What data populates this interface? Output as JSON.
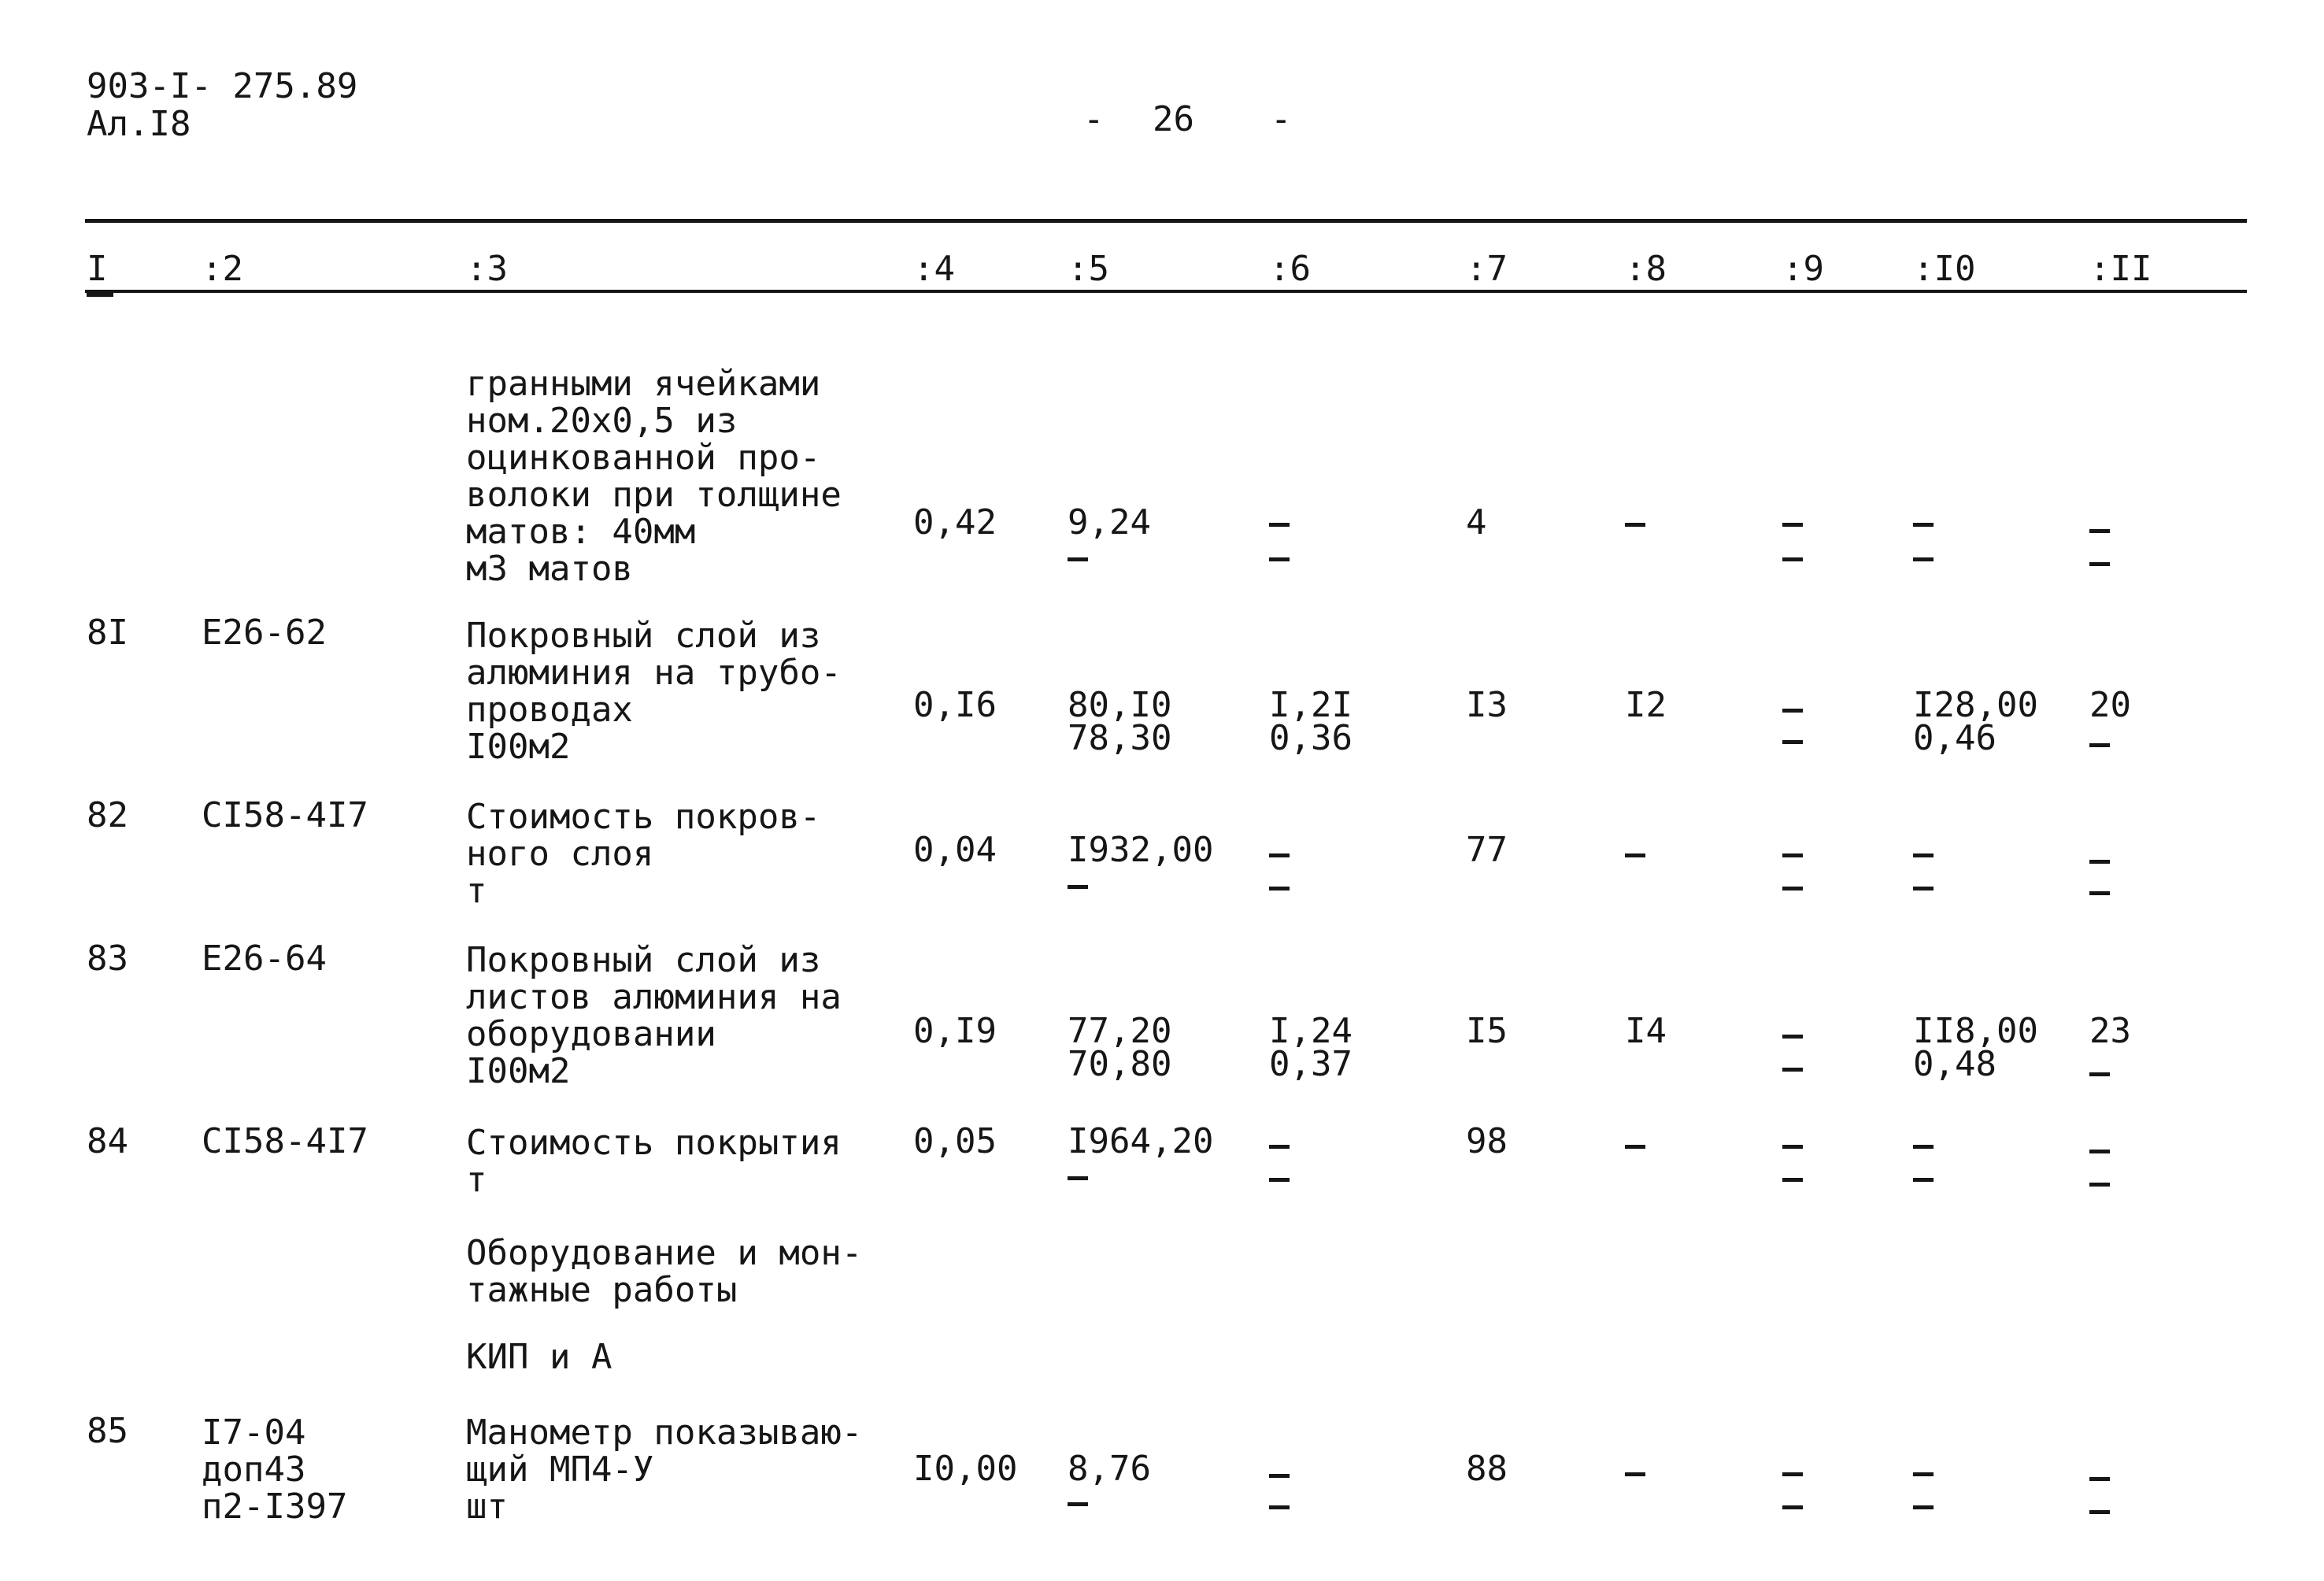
{
  "header": {
    "doc_code": "903-I- 275.89",
    "album": "Ал.I8",
    "page_number": "26",
    "page_dash_left": "-",
    "page_dash_right": "-"
  },
  "columns": [
    "I",
    ":2",
    ":3",
    ":4",
    ":5",
    ":6",
    ":7",
    ":8",
    ":9",
    ":I0",
    ":II"
  ],
  "rows": [
    {
      "num": "",
      "code": "",
      "name": "гранными ячейками\nном.20х0,5 из\nоцинкованной про-\nволоки при толщине\nматов: 40мм\nм3 матов",
      "col4": "0,42",
      "col5": "9,24",
      "col5b": "-",
      "col6": "-",
      "col6b": "-",
      "col7": "4",
      "col8": "-",
      "col9": "-",
      "col9b": "-",
      "col10": "-",
      "col10b": "-",
      "col11": "-",
      "col11b": "-"
    },
    {
      "num": "8I",
      "code": "Е26-62",
      "name": "Покровный слой из\nалюминия на трубо-\nпроводах\nI00м2",
      "col4": "0,I6",
      "col5": "80,I0",
      "col5b": "78,30",
      "col6": "I,2I",
      "col6b": "0,36",
      "col7": "I3",
      "col8": "I2",
      "col9": "-",
      "col9b": "-",
      "col10": "I28,00",
      "col10b": "0,46",
      "col11": "20",
      "col11b": "-"
    },
    {
      "num": "82",
      "code": "СI58-4I7",
      "name": "Стоимость покров-\nного слоя\nт",
      "col4": "0,04",
      "col5": "I932,00",
      "col5b": "-",
      "col6": "-",
      "col6b": "-",
      "col7": "77",
      "col8": "-",
      "col9": "-",
      "col9b": "-",
      "col10": "-",
      "col10b": "-",
      "col11": "-",
      "col11b": "-"
    },
    {
      "num": "83",
      "code": "Е26-64",
      "name": "Покровный слой из\nлистов алюминия на\nоборудовании\nI00м2",
      "col4": "0,I9",
      "col5": "77,20",
      "col5b": "70,80",
      "col6": "I,24",
      "col6b": "0,37",
      "col7": "I5",
      "col8": "I4",
      "col9": "-",
      "col9b": "-",
      "col10": "II8,00",
      "col10b": "0,48",
      "col11": "23",
      "col11b": "-"
    },
    {
      "num": "84",
      "code": "СI58-4I7",
      "name": "Стоимость покрытия\nт",
      "col4": "0,05",
      "col5": "I964,20",
      "col5b": "-",
      "col6": "-",
      "col6b": "-",
      "col7": "98",
      "col8": "-",
      "col9": "-",
      "col9b": "-",
      "col10": "-",
      "col10b": "-",
      "col11": "-",
      "col11b": "-"
    },
    {
      "num": "85",
      "code": "I7-04\nдоп43\nп2-I397",
      "name": "Манометр показываю-\nщий МП4-У\nшт",
      "col4": "I0,00",
      "col5": "8,76",
      "col5b": "-",
      "col6": "-",
      "col6b": "-",
      "col7": "88",
      "col8": "-",
      "col9": "-",
      "col9b": "-",
      "col10": "-",
      "col10b": "-",
      "col11": "-",
      "col11b": "-"
    }
  ],
  "section_headers": [
    "Оборудование и мон-\nтажные работы",
    "КИП и А"
  ]
}
